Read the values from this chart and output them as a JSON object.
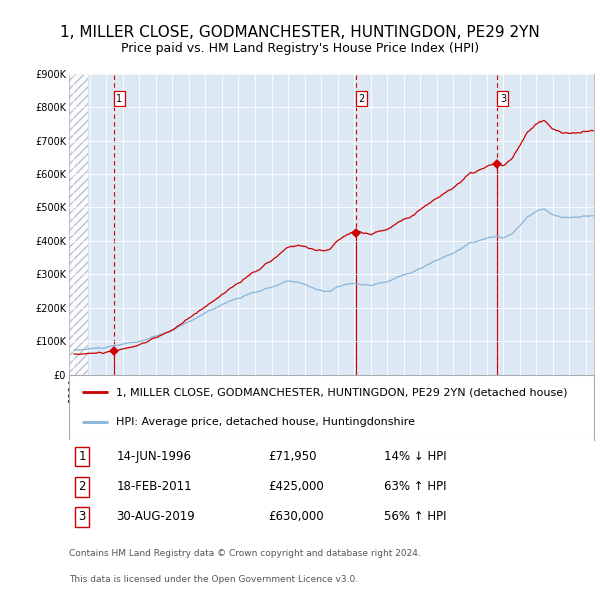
{
  "title": "1, MILLER CLOSE, GODMANCHESTER, HUNTINGDON, PE29 2YN",
  "subtitle": "Price paid vs. HM Land Registry's House Price Index (HPI)",
  "legend_property": "1, MILLER CLOSE, GODMANCHESTER, HUNTINGDON, PE29 2YN (detached house)",
  "legend_hpi": "HPI: Average price, detached house, Huntingdonshire",
  "footnote_line1": "Contains HM Land Registry data © Crown copyright and database right 2024.",
  "footnote_line2": "This data is licensed under the Open Government Licence v3.0.",
  "sales": [
    {
      "num": 1,
      "date": "14-JUN-1996",
      "price": 71950,
      "hpi_rel": "14% ↓ HPI"
    },
    {
      "num": 2,
      "date": "18-FEB-2011",
      "price": 425000,
      "hpi_rel": "63% ↑ HPI"
    },
    {
      "num": 3,
      "date": "30-AUG-2019",
      "price": 630000,
      "hpi_rel": "56% ↑ HPI"
    }
  ],
  "sale_dates_decimal": [
    1996.45,
    2011.12,
    2019.66
  ],
  "sale_prices": [
    71950,
    425000,
    630000
  ],
  "ylim": [
    0,
    900000
  ],
  "xlim_start": 1993.75,
  "xlim_end": 2025.5,
  "plot_bg": "#dce9f5",
  "grid_color": "#ffffff",
  "line_color_property": "#cc0000",
  "line_color_hpi": "#88b4d8",
  "vline_color": "#cc0000",
  "sale_marker_color": "#cc0000",
  "title_fontsize": 11,
  "subtitle_fontsize": 9,
  "tick_fontsize": 7,
  "legend_fontsize": 8,
  "table_fontsize": 8.5,
  "foot_fontsize": 6.5
}
